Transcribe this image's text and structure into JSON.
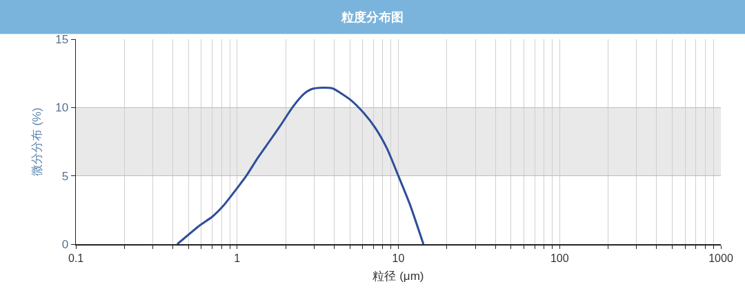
{
  "chart_data": {
    "type": "line",
    "title": "粒度分布图",
    "xlabel": "粒径 (μm)",
    "ylabel": "微分分布 (%)",
    "log": "x",
    "x": [
      0.425,
      0.59,
      0.7,
      0.82,
      1.0,
      1.14,
      1.34,
      1.58,
      1.86,
      2.2,
      2.6,
      2.9,
      3.4,
      3.9,
      5.0,
      6.1,
      7.2,
      8.5,
      10,
      11.8,
      14.3
    ],
    "series": [
      {
        "color": "#2e4d9b",
        "values": [
          0,
          1.4,
          2.0,
          2.8,
          4.1,
          5.0,
          6.3,
          7.5,
          8.7,
          10.0,
          11.0,
          11.35,
          11.45,
          11.4,
          10.6,
          9.6,
          8.5,
          7.0,
          5.0,
          2.9,
          0
        ]
      }
    ],
    "xlim": [
      0.1,
      1000
    ],
    "ylim": [
      0,
      15
    ],
    "xticks": [
      0.1,
      {
        "value": 0.2,
        "label": null
      },
      {
        "value": 0.3,
        "label": null
      },
      {
        "value": 0.4,
        "label": null
      },
      {
        "value": 0.5,
        "label": null
      },
      {
        "value": 0.6,
        "label": null
      },
      {
        "value": 0.7,
        "label": null
      },
      {
        "value": 0.8,
        "label": null
      },
      {
        "value": 0.9,
        "label": null
      },
      1,
      {
        "value": 2,
        "label": null
      },
      {
        "value": 3,
        "label": null
      },
      {
        "value": 4,
        "label": null
      },
      {
        "value": 5,
        "label": null
      },
      {
        "value": 6,
        "label": null
      },
      {
        "value": 7,
        "label": null
      },
      {
        "value": 8,
        "label": null
      },
      {
        "value": 9,
        "label": null
      },
      10,
      {
        "value": 20,
        "label": null
      },
      {
        "value": 30,
        "label": null
      },
      {
        "value": 40,
        "label": null
      },
      {
        "value": 50,
        "label": null
      },
      {
        "value": 60,
        "label": null
      },
      {
        "value": 70,
        "label": null
      },
      {
        "value": 80,
        "label": null
      },
      {
        "value": 90,
        "label": null
      },
      100,
      {
        "value": 200,
        "label": null
      },
      {
        "value": 300,
        "label": null
      },
      {
        "value": 400,
        "label": null
      },
      {
        "value": 500,
        "label": null
      },
      {
        "value": 600,
        "label": null
      },
      {
        "value": 700,
        "label": null
      },
      {
        "value": 800,
        "label": null
      },
      {
        "value": 900,
        "label": null
      },
      1000
    ],
    "yticks": [
      0,
      5,
      10,
      15
    ],
    "bands": [
      {
        "axis": "y",
        "from": 5,
        "to": 10,
        "color": "#e9e9e9"
      }
    ],
    "grid": true,
    "marker": "none",
    "line_style": "solid"
  }
}
